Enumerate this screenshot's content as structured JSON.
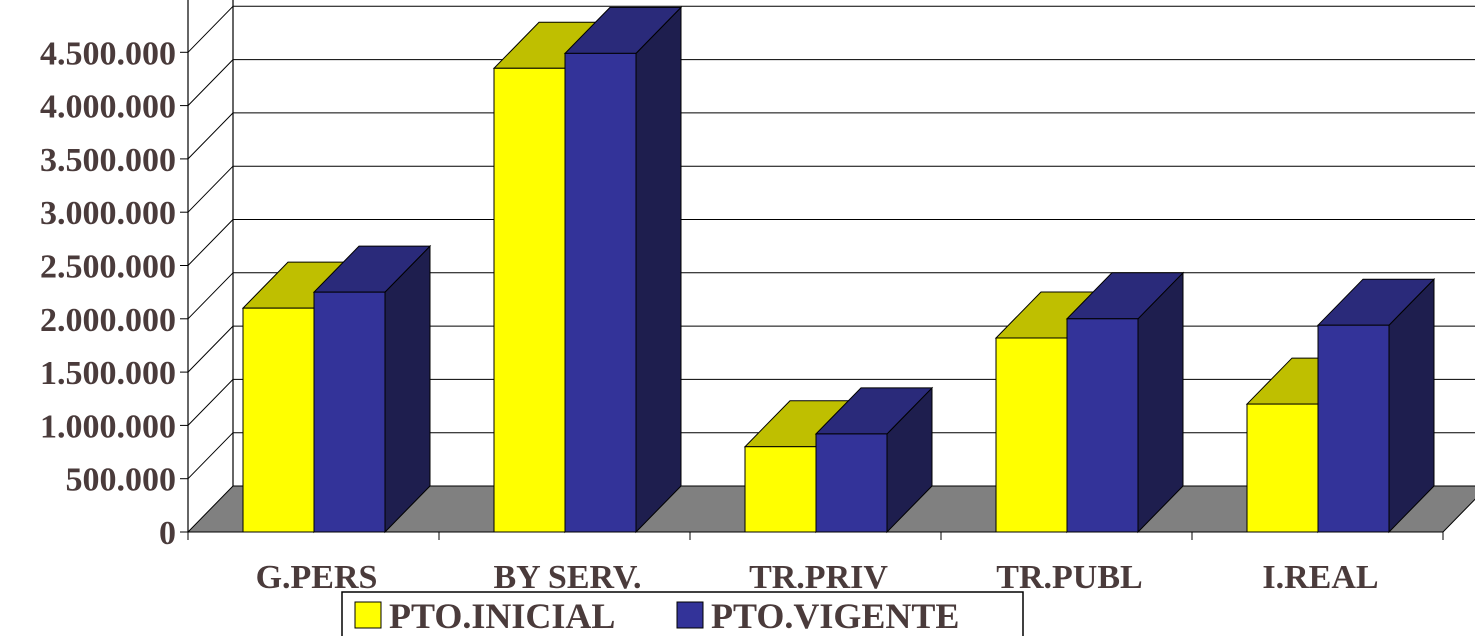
{
  "colors": {
    "series_inicial_front": "#ffff00",
    "series_inicial_top": "#bfbf00",
    "series_inicial_side": "#8c8c00",
    "series_vigente_front": "#333399",
    "series_vigente_top": "#2a2a7a",
    "series_vigente_side": "#1e1e4e",
    "floor": "#808080",
    "grid": "#000000",
    "text": "#4a3b3b"
  },
  "chart_data": {
    "type": "bar",
    "style": "3d-clustered-column",
    "title": "",
    "xlabel": "",
    "ylabel": "",
    "ylim": [
      0,
      5000000
    ],
    "yticks": [
      0,
      500000,
      1000000,
      1500000,
      2000000,
      2500000,
      3000000,
      3500000,
      4000000,
      4500000
    ],
    "ytick_labels": [
      "0",
      "500.000",
      "1.000.000",
      "1.500.000",
      "2.000.000",
      "2.500.000",
      "3.000.000",
      "3.500.000",
      "4.000.000",
      "4.500.000"
    ],
    "grid": true,
    "legend_position": "bottom-center",
    "categories": [
      "G.PERS",
      "BY SERV.",
      "TR.PRIV",
      "TR.PUBL",
      "I.REAL"
    ],
    "series": [
      {
        "name": "PTO.INICIAL",
        "values": [
          2100000,
          4350000,
          800000,
          1820000,
          1200000
        ]
      },
      {
        "name": "PTO.VIGENTE",
        "values": [
          2250000,
          4490000,
          920000,
          2000000,
          1940000
        ]
      }
    ]
  }
}
